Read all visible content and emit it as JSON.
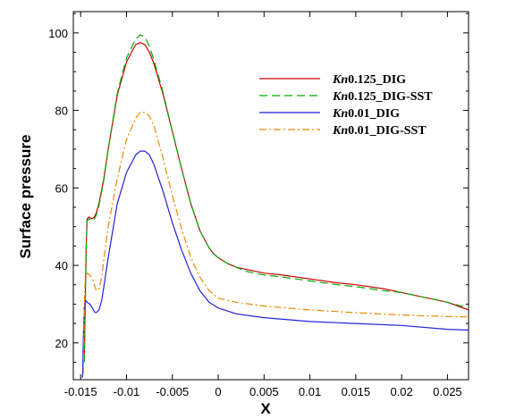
{
  "chart_data": {
    "type": "line",
    "xlabel": "X",
    "ylabel": "Surface pressure",
    "xlim": [
      -0.0158,
      0.0273
    ],
    "ylim": [
      10.5,
      105.5
    ],
    "xticks": [
      "-0.015",
      "-0.01",
      "-0.005",
      "0",
      "0.005",
      "0.01",
      "0.015",
      "0.02",
      "0.025"
    ],
    "yticks": [
      "20",
      "40",
      "60",
      "80",
      "100"
    ],
    "grid": false,
    "legend_position": "top-right",
    "series": [
      {
        "name": "Kn0.125_DIG",
        "name_prefix": "Kn",
        "name_suffix": "0.125_DIG",
        "color": "#cc0000",
        "dash": "solid",
        "x": [
          -0.0146,
          -0.0145,
          -0.0144,
          -0.0143,
          -0.0141,
          -0.0138,
          -0.0135,
          -0.0133,
          -0.013,
          -0.0125,
          -0.012,
          -0.011,
          -0.01,
          -0.009,
          -0.0085,
          -0.008,
          -0.0075,
          -0.007,
          -0.006,
          -0.005,
          -0.004,
          -0.003,
          -0.002,
          -0.001,
          -0.0005,
          0,
          0.001,
          0.002,
          0.003,
          0.005,
          0.007,
          0.01,
          0.013,
          0.015,
          0.018,
          0.02,
          0.022,
          0.025,
          0.0273
        ],
        "y": [
          16,
          30,
          45,
          52,
          52.5,
          52,
          52.5,
          53.5,
          56,
          62,
          70,
          84,
          92.5,
          97,
          97.5,
          97,
          95,
          92,
          84,
          74.5,
          65,
          56,
          49,
          44.5,
          43,
          42,
          40.5,
          39.5,
          39,
          38,
          37.5,
          36.5,
          35.5,
          35,
          34,
          33,
          32,
          30.5,
          28.5
        ]
      },
      {
        "name": "Kn0.125_DIG-SST",
        "name_prefix": "Kn",
        "name_suffix": "0.125_DIG-SST",
        "color": "#00aa00",
        "dash": "dashed",
        "x": [
          -0.0146,
          -0.0145,
          -0.0144,
          -0.0143,
          -0.0141,
          -0.0138,
          -0.0135,
          -0.0133,
          -0.013,
          -0.0125,
          -0.012,
          -0.011,
          -0.01,
          -0.009,
          -0.0085,
          -0.008,
          -0.0075,
          -0.007,
          -0.006,
          -0.005,
          -0.004,
          -0.003,
          -0.002,
          -0.001,
          -0.0005,
          0,
          0.001,
          0.002,
          0.003,
          0.005,
          0.007,
          0.01,
          0.013,
          0.015,
          0.018,
          0.02,
          0.022,
          0.025,
          0.0273
        ],
        "y": [
          15,
          29,
          44,
          51.5,
          52,
          51.5,
          52,
          53,
          55.5,
          61.5,
          70,
          84.5,
          93.5,
          98.5,
          99.5,
          99,
          96.5,
          93,
          84.5,
          74.5,
          65,
          56,
          49,
          44.5,
          43,
          42,
          40.5,
          39.5,
          38.5,
          37.5,
          37,
          36,
          35,
          34.5,
          33.5,
          33,
          32,
          30.5,
          29
        ]
      },
      {
        "name": "Kn0.01_DIG",
        "name_prefix": "Kn",
        "name_suffix": "0.01_DIG",
        "color": "#2222dd",
        "dash": "solid",
        "x": [
          -0.0148,
          -0.0147,
          -0.0146,
          -0.0145,
          -0.0143,
          -0.014,
          -0.0137,
          -0.0135,
          -0.0133,
          -0.013,
          -0.0127,
          -0.0125,
          -0.012,
          -0.011,
          -0.01,
          -0.009,
          -0.0085,
          -0.008,
          -0.0075,
          -0.007,
          -0.006,
          -0.005,
          -0.004,
          -0.003,
          -0.002,
          -0.001,
          0,
          0.002,
          0.005,
          0.01,
          0.015,
          0.02,
          0.025,
          0.0273
        ],
        "y": [
          11,
          22,
          29,
          31,
          30.5,
          30,
          29,
          28,
          27.8,
          28.5,
          31,
          34,
          42,
          56,
          64,
          68.5,
          69.5,
          69.5,
          68.5,
          66,
          59,
          51,
          44,
          38,
          33.5,
          30.5,
          29,
          27.5,
          26.5,
          25.5,
          25,
          24.5,
          23.5,
          23.3
        ]
      },
      {
        "name": "Kn0.01_DIG-SST",
        "name_prefix": "Kn",
        "name_suffix": "0.01_DIG-SST",
        "color": "#ee8800",
        "dash": "dashdot",
        "x": [
          -0.0147,
          -0.0146,
          -0.0145,
          -0.0143,
          -0.014,
          -0.0137,
          -0.0135,
          -0.0133,
          -0.013,
          -0.0127,
          -0.0125,
          -0.012,
          -0.011,
          -0.01,
          -0.009,
          -0.0085,
          -0.008,
          -0.0075,
          -0.007,
          -0.006,
          -0.005,
          -0.004,
          -0.003,
          -0.002,
          -0.001,
          0,
          0.002,
          0.005,
          0.01,
          0.015,
          0.02,
          0.025,
          0.0273
        ],
        "y": [
          12,
          30,
          37,
          38,
          37.5,
          36.5,
          35,
          33.5,
          34,
          37,
          41,
          50,
          62.5,
          72.5,
          78,
          79.5,
          79.5,
          78.5,
          76,
          67.5,
          58,
          49.5,
          42,
          37,
          33.5,
          31.5,
          30.5,
          29.5,
          28.5,
          27.8,
          27.2,
          26.8,
          26.7
        ]
      }
    ]
  }
}
